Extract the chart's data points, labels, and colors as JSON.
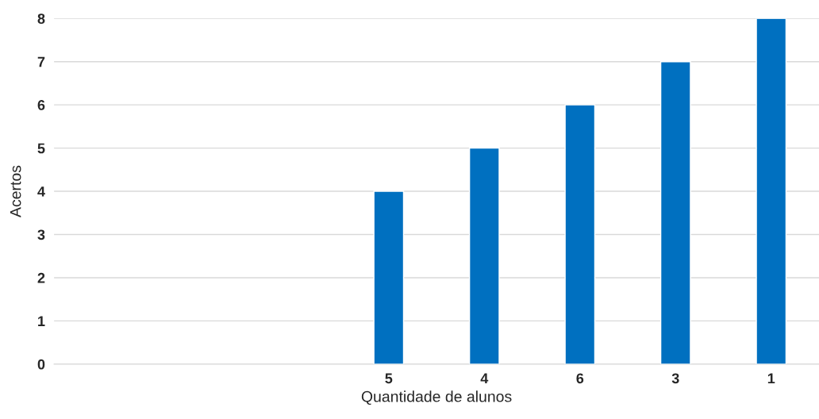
{
  "chart_data": {
    "type": "bar",
    "xlabel": "Quantidade de alunos",
    "ylabel": "Acertos",
    "categories": [
      null,
      null,
      null,
      "5",
      "4",
      "6",
      "3",
      "1"
    ],
    "values": [
      null,
      null,
      null,
      4,
      5,
      6,
      7,
      8
    ],
    "color": "#0070c0",
    "ylim": [
      0,
      8
    ],
    "yticks": [
      0,
      1,
      2,
      3,
      4,
      5,
      6,
      7,
      8
    ],
    "grid": "y"
  }
}
